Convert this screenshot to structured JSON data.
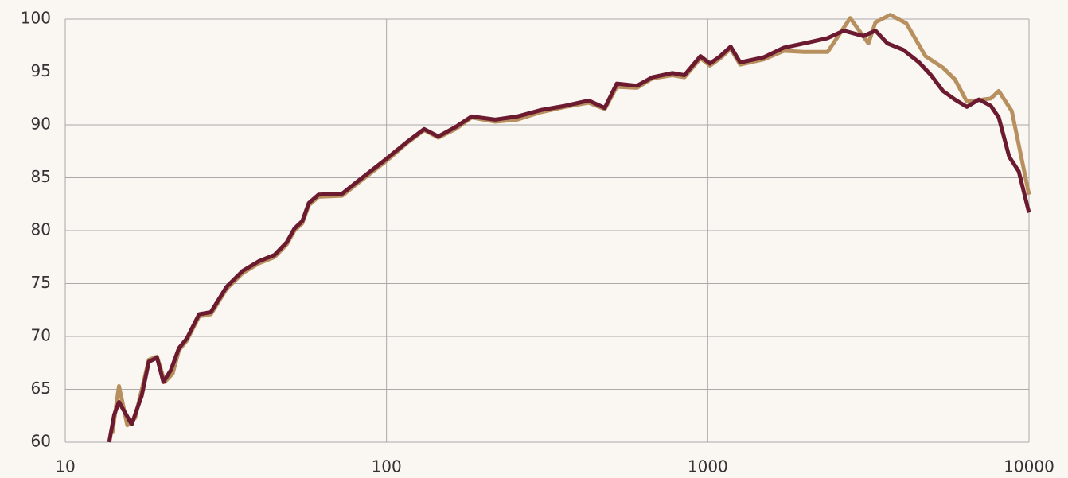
{
  "chart_data": {
    "type": "line",
    "xscale": "log",
    "grid": true,
    "xlim": [
      10,
      10000
    ],
    "xticks": [
      10,
      100,
      1000,
      10000
    ],
    "ylim": [
      60,
      100
    ],
    "yticks": [
      60,
      65,
      70,
      75,
      80,
      85,
      90,
      95,
      100
    ],
    "series": [
      {
        "color": "#b8905f",
        "x": [
          14.0,
          14.7,
          15.6,
          16.5,
          18.2,
          19.3,
          20.4,
          21.6,
          22.6,
          23.9,
          26.1,
          28.4,
          31.8,
          35.7,
          40,
          44.8,
          48.9,
          51.7,
          54.7,
          57.3,
          61.4,
          72.8,
          81.6,
          100,
          116,
          131,
          145,
          164,
          184,
          218,
          255,
          302,
          359,
          426,
          478,
          521,
          602,
          673,
          776,
          846,
          949,
          1016,
          1094,
          1178,
          1262,
          1497,
          1726,
          1991,
          2362,
          2776,
          3163,
          3327,
          3700,
          4150,
          4760,
          5398,
          5881,
          6406,
          7603,
          8050,
          8840,
          10000
        ],
        "values": [
          60.8,
          65.3,
          61.6,
          62.3,
          67.8,
          68.1,
          65.7,
          66.5,
          68.7,
          69.6,
          71.9,
          72.1,
          74.5,
          76.0,
          76.9,
          77.5,
          78.7,
          80.0,
          80.7,
          82.4,
          83.2,
          83.3,
          84.5,
          86.6,
          88.3,
          89.5,
          88.8,
          89.6,
          90.7,
          90.3,
          90.5,
          91.2,
          91.7,
          92.1,
          91.5,
          93.6,
          93.5,
          94.4,
          94.7,
          94.5,
          96.3,
          95.6,
          96.3,
          97.2,
          95.7,
          96.2,
          97.0,
          96.9,
          96.9,
          100.1,
          97.7,
          99.7,
          100.4,
          99.6,
          96.5,
          95.4,
          94.3,
          92.2,
          92.5,
          93.2,
          91.3,
          83.4
        ]
      },
      {
        "color": "#6b1a30",
        "x": [
          13.7,
          14.2,
          14.7,
          16.1,
          17.3,
          18.2,
          19.3,
          20.2,
          21.3,
          22.6,
          23.9,
          26.1,
          28.4,
          31.8,
          35.7,
          40,
          44.8,
          48.9,
          51.7,
          54.7,
          57.3,
          61.4,
          72.8,
          81.6,
          100,
          116,
          131,
          145,
          164,
          184,
          218,
          255,
          302,
          359,
          426,
          478,
          521,
          602,
          673,
          776,
          846,
          949,
          1016,
          1094,
          1178,
          1262,
          1497,
          1726,
          1991,
          2362,
          2648,
          3052,
          3327,
          3624,
          4058,
          4548,
          4955,
          5398,
          5881,
          6406,
          6980,
          7603,
          8050,
          8670,
          9289,
          10000
        ],
        "values": [
          60,
          62.6,
          63.8,
          61.7,
          64.4,
          67.6,
          68.0,
          65.7,
          66.8,
          68.9,
          69.8,
          72.1,
          72.3,
          74.7,
          76.2,
          77.1,
          77.7,
          78.9,
          80.2,
          80.9,
          82.6,
          83.4,
          83.5,
          84.7,
          86.8,
          88.4,
          89.6,
          88.9,
          89.8,
          90.8,
          90.5,
          90.8,
          91.4,
          91.8,
          92.3,
          91.6,
          93.9,
          93.7,
          94.5,
          94.9,
          94.7,
          96.5,
          95.8,
          96.5,
          97.4,
          95.9,
          96.4,
          97.3,
          97.7,
          98.2,
          98.9,
          98.4,
          98.9,
          97.7,
          97.1,
          95.9,
          94.7,
          93.2,
          92.4,
          91.7,
          92.4,
          91.8,
          90.7,
          87.0,
          85.6,
          81.7
        ]
      }
    ]
  }
}
